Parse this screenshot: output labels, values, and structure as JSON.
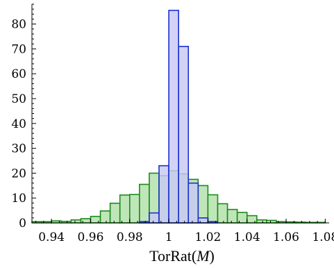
{
  "colors": {
    "narrow_fill": "#c8c8f4",
    "narrow_stroke": "#1a2fd0",
    "wide_fill": "#bfe6b8",
    "wide_stroke": "#1c8a1c",
    "axis": "#000000"
  },
  "chart_data": {
    "type": "bar",
    "subtype": "overlapping histogram",
    "title": "",
    "xlabel": "TorRat(M)",
    "xlabel_parts": {
      "prefix": "TorRat(",
      "var": "M",
      "suffix": ")"
    },
    "ylabel": "",
    "xlim": [
      0.93,
      1.082
    ],
    "ylim": [
      0,
      88
    ],
    "x_ticks": [
      0.94,
      0.96,
      0.98,
      1,
      1.02,
      1.04,
      1.06,
      1.08
    ],
    "x_tick_labels": [
      "0.94",
      "0.96",
      "0.98",
      "1",
      "1.02",
      "1.04",
      "1.06",
      "1.08"
    ],
    "y_ticks": [
      0,
      10,
      20,
      30,
      40,
      50,
      60,
      70,
      80
    ],
    "y_tick_labels": [
      "0",
      "10",
      "20",
      "30",
      "40",
      "50",
      "60",
      "70",
      "80"
    ],
    "grid": false,
    "legend": "none",
    "bin_width": 0.005,
    "series": [
      {
        "style": "wide",
        "bins": [
          {
            "x0": 0.93,
            "value": 0.5
          },
          {
            "x0": 0.935,
            "value": 0.5
          },
          {
            "x0": 0.94,
            "value": 0.8
          },
          {
            "x0": 0.945,
            "value": 0.6
          },
          {
            "x0": 0.95,
            "value": 1.2
          },
          {
            "x0": 0.955,
            "value": 1.7
          },
          {
            "x0": 0.96,
            "value": 2.6
          },
          {
            "x0": 0.965,
            "value": 4.8
          },
          {
            "x0": 0.97,
            "value": 7.9
          },
          {
            "x0": 0.975,
            "value": 11.2
          },
          {
            "x0": 0.98,
            "value": 11.4
          },
          {
            "x0": 0.985,
            "value": 15.5
          },
          {
            "x0": 0.99,
            "value": 20.0
          },
          {
            "x0": 0.995,
            "value": 19.0
          },
          {
            "x0": 1.0,
            "value": 21.0
          },
          {
            "x0": 1.005,
            "value": 19.7
          },
          {
            "x0": 1.01,
            "value": 17.5
          },
          {
            "x0": 1.015,
            "value": 15.0
          },
          {
            "x0": 1.02,
            "value": 11.3
          },
          {
            "x0": 1.025,
            "value": 7.7
          },
          {
            "x0": 1.03,
            "value": 5.4
          },
          {
            "x0": 1.035,
            "value": 4.2
          },
          {
            "x0": 1.04,
            "value": 2.9
          },
          {
            "x0": 1.045,
            "value": 1.2
          },
          {
            "x0": 1.05,
            "value": 1.0
          },
          {
            "x0": 1.055,
            "value": 0.5
          },
          {
            "x0": 1.06,
            "value": 0.4
          },
          {
            "x0": 1.065,
            "value": 0.3
          },
          {
            "x0": 1.07,
            "value": 0.2
          },
          {
            "x0": 1.075,
            "value": 0.2
          }
        ]
      },
      {
        "style": "narrow",
        "bins": [
          {
            "x0": 0.985,
            "value": 0.5
          },
          {
            "x0": 0.99,
            "value": 4.0
          },
          {
            "x0": 0.995,
            "value": 23.0
          },
          {
            "x0": 1.0,
            "value": 85.5
          },
          {
            "x0": 1.005,
            "value": 71.0
          },
          {
            "x0": 1.01,
            "value": 16.0
          },
          {
            "x0": 1.015,
            "value": 2.0
          },
          {
            "x0": 1.02,
            "value": 0.5
          }
        ]
      }
    ]
  }
}
